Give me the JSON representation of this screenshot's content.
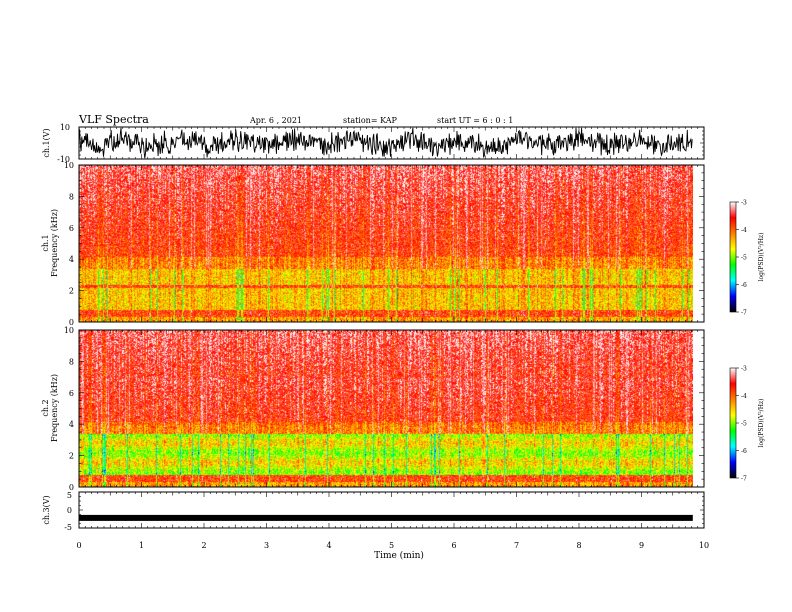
{
  "header": {
    "title": "VLF Spectra",
    "date": "Apr. 6 , 2021",
    "station": "station= KAP",
    "start": "start UT = 6 : 0 : 1"
  },
  "chart_data": [
    {
      "type": "line",
      "name": "ch1-waveform",
      "ylabel": "ch.1(V)",
      "ylim": [
        -10,
        10
      ],
      "yticks": [
        "10",
        "-10"
      ],
      "xlim": [
        0,
        10
      ]
    },
    {
      "type": "heatmap",
      "name": "ch1-spectrogram",
      "ylabel_line1": "ch.1",
      "ylabel_line2": "Frequency (kHz)",
      "ylim": [
        0,
        10
      ],
      "yticks": [
        "0",
        "2",
        "4",
        "6",
        "8",
        "10"
      ],
      "xlim": [
        0,
        10
      ],
      "data_end_min": 9.82,
      "colorbar": {
        "label": "log(PSD)(V²/Hz)",
        "range": [
          -7,
          -3
        ],
        "ticks": [
          "-3",
          "-4",
          "-5",
          "-6",
          "-7"
        ],
        "colors": [
          "#000000",
          "#0000ff",
          "#00ffff",
          "#00ff00",
          "#ffff00",
          "#ff8000",
          "#ff0000",
          "#ffffff"
        ]
      }
    },
    {
      "type": "heatmap",
      "name": "ch2-spectrogram",
      "ylabel_line1": "ch.2",
      "ylabel_line2": "Frequency (kHz)",
      "ylim": [
        0,
        10
      ],
      "yticks": [
        "0",
        "2",
        "4",
        "6",
        "8",
        "10"
      ],
      "xlim": [
        0,
        10
      ],
      "data_end_min": 9.82,
      "colorbar": {
        "label": "log(PSD)(V²/Hz)",
        "range": [
          -7,
          -3
        ],
        "ticks": [
          "-3",
          "-4",
          "-5",
          "-6",
          "-7"
        ],
        "colors": [
          "#000000",
          "#0000ff",
          "#00ffff",
          "#00ff00",
          "#ffff00",
          "#ff8000",
          "#ff0000",
          "#ffffff"
        ]
      }
    },
    {
      "type": "line",
      "name": "ch3-waveform",
      "ylabel": "ch.3(V)",
      "ylim": [
        -5,
        5
      ],
      "yticks": [
        "5",
        "0",
        "-5"
      ],
      "xlim": [
        0,
        10
      ],
      "level": -2.2
    }
  ],
  "xaxis": {
    "label": "Time (min)",
    "ticks": [
      "0",
      "1",
      "2",
      "3",
      "4",
      "5",
      "6",
      "7",
      "8",
      "9",
      "10"
    ]
  }
}
